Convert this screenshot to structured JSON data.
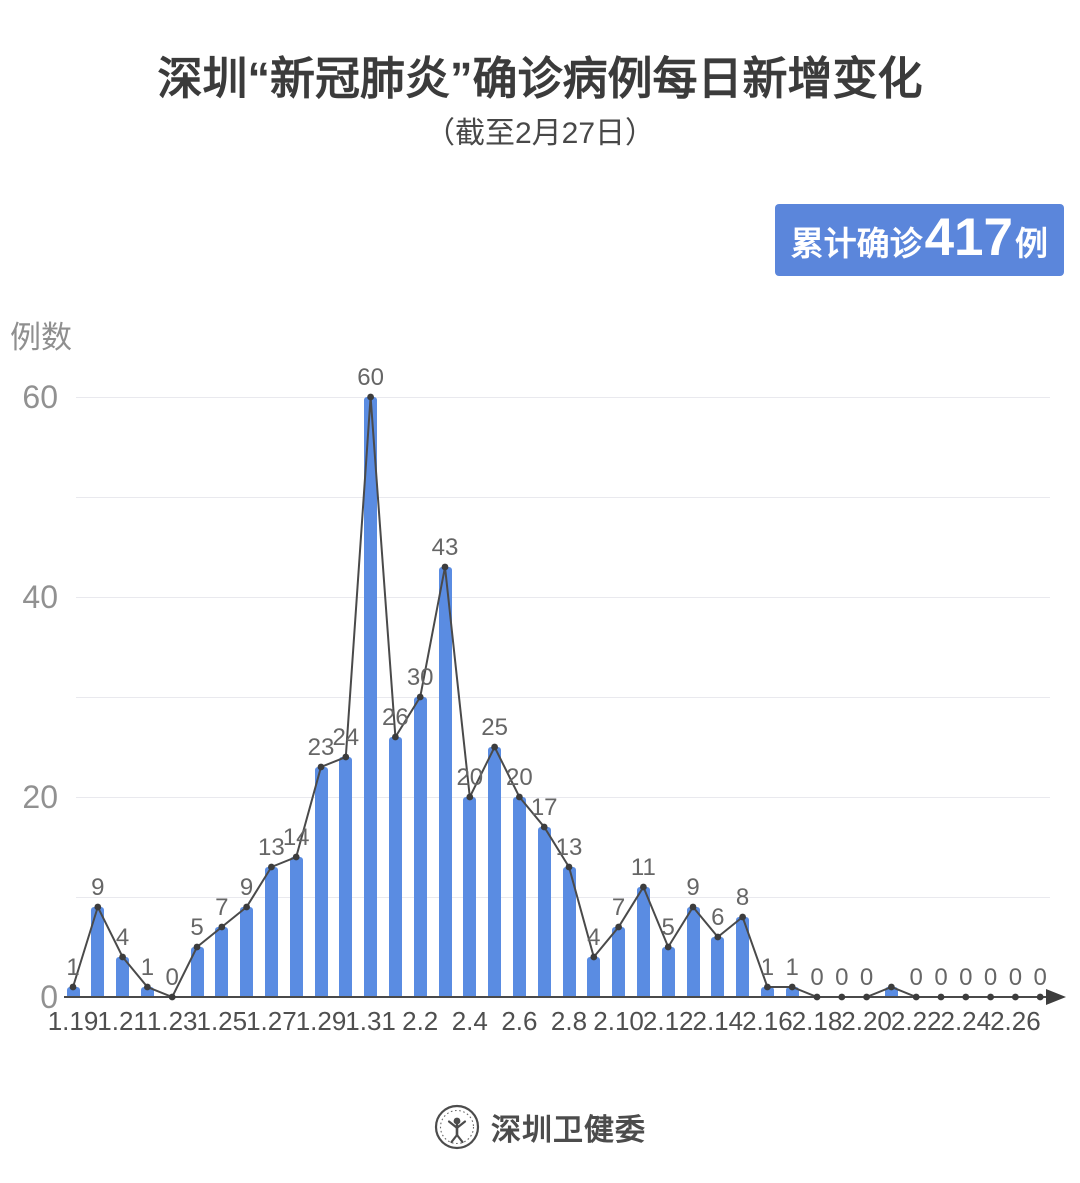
{
  "title": "深圳“新冠肺炎”确诊病例每日新增变化",
  "subtitle": "（截至2月27日）",
  "badge": {
    "prefix": "累计确诊",
    "value": "417",
    "suffix": "例",
    "bg_color": "#5b86db",
    "text_color": "#ffffff"
  },
  "footer": {
    "org": "深圳卫健委"
  },
  "chart_data": {
    "type": "bar",
    "overlay": "line",
    "title": "深圳“新冠肺炎”确诊病例每日新增变化",
    "subtitle": "（截至2月27日）",
    "ylabel": "例数",
    "xlabel": "",
    "ylim": [
      0,
      60
    ],
    "y_ticks": [
      0,
      20,
      40,
      60
    ],
    "gridline_interval": 10,
    "grid": true,
    "categories": [
      "1.19",
      "1.20",
      "1.21",
      "1.22",
      "1.23",
      "1.24",
      "1.25",
      "1.26",
      "1.27",
      "1.28",
      "1.29",
      "1.30",
      "1.31",
      "2.1",
      "2.2",
      "2.3",
      "2.4",
      "2.5",
      "2.6",
      "2.7",
      "2.8",
      "2.9",
      "2.10",
      "2.11",
      "2.12",
      "2.13",
      "2.14",
      "2.15",
      "2.16",
      "2.17",
      "2.18",
      "2.19",
      "2.20",
      "2.21",
      "2.22",
      "2.23",
      "2.24",
      "2.25",
      "2.26",
      "2.27"
    ],
    "values": [
      1,
      9,
      4,
      1,
      0,
      5,
      7,
      9,
      13,
      14,
      23,
      24,
      60,
      26,
      30,
      43,
      20,
      25,
      20,
      17,
      13,
      4,
      7,
      11,
      5,
      9,
      6,
      8,
      1,
      1,
      0,
      0,
      0,
      1,
      0,
      0,
      0,
      0,
      0,
      0
    ],
    "point_labels": [
      "1",
      "9",
      "4",
      "1",
      "0",
      "5",
      "7",
      "9",
      "13",
      "14",
      "23",
      "24",
      "60",
      "26",
      "30",
      "43",
      "20",
      "25",
      "20",
      "17",
      "13",
      "4",
      "7",
      "11",
      "5",
      "9",
      "6",
      "8",
      "1",
      "1",
      "0",
      "0",
      "0",
      "",
      "0",
      "0",
      "0",
      "0",
      "0",
      "0"
    ],
    "x_tick_labels": [
      "1.19",
      "1.21",
      "1.23",
      "1.25",
      "1.27",
      "1.29",
      "1.31",
      "2.2",
      "2.4",
      "2.6",
      "2.8",
      "2.10",
      "2.12",
      "2.14",
      "2.16",
      "2.18",
      "2.20",
      "2.22",
      "2.24",
      "2.26"
    ],
    "bar_color": "#5a8ce2",
    "line_color": "#4a4a4a",
    "marker_color": "#3c3c3c",
    "legend": "none"
  }
}
